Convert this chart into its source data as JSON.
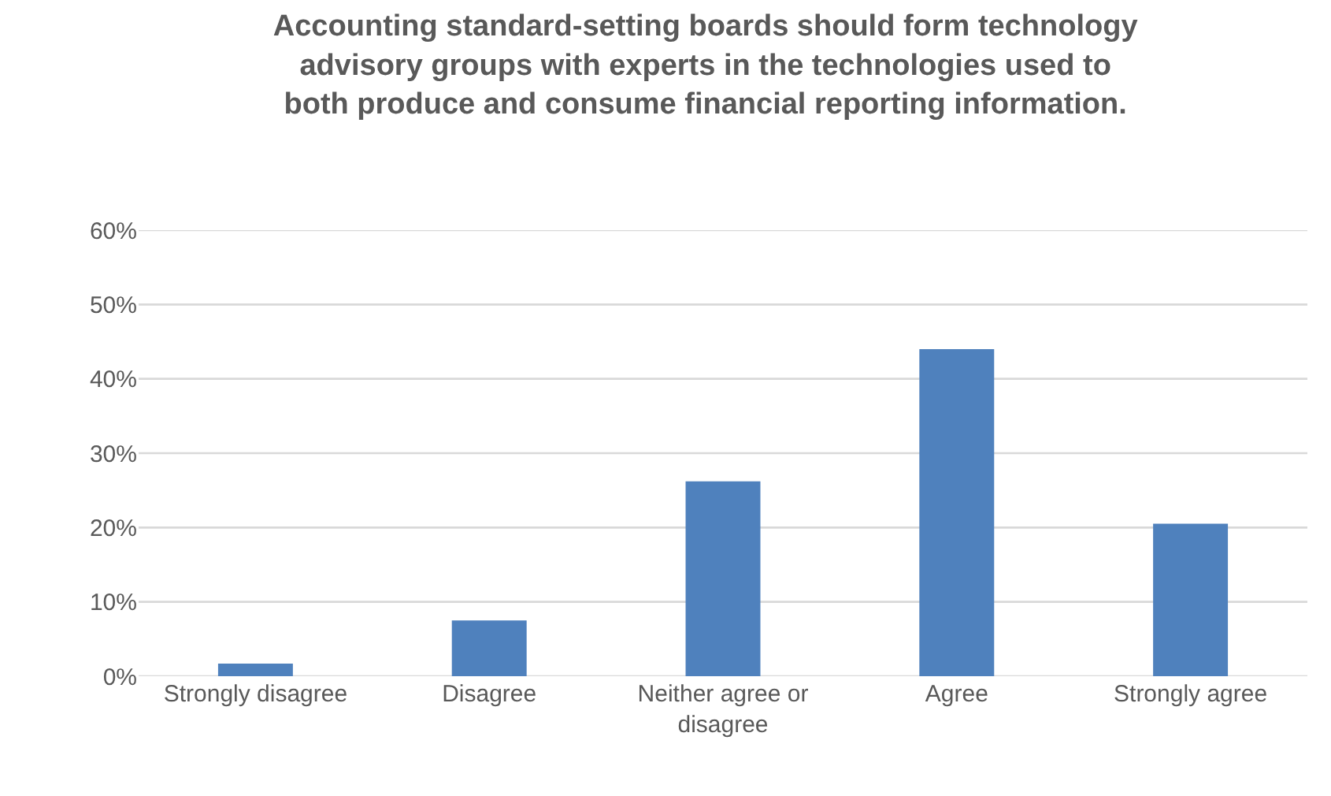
{
  "chart_data": {
    "type": "bar",
    "title": "Accounting standard-setting boards should form technology advisory groups with experts in the technologies used to both produce and consume financial reporting information.",
    "categories": [
      "Strongly disagree",
      "Disagree",
      "Neither agree or disagree",
      "Agree",
      "Strongly agree"
    ],
    "values": [
      1.7,
      7.5,
      26.2,
      44.0,
      20.5
    ],
    "color": "#4f81bd",
    "ylim": [
      0,
      60
    ],
    "yticks": [
      {
        "value": 0,
        "label": "0%"
      },
      {
        "value": 10,
        "label": "10%"
      },
      {
        "value": 20,
        "label": "20%"
      },
      {
        "value": 30,
        "label": "30%"
      },
      {
        "value": 40,
        "label": "40%"
      },
      {
        "value": 50,
        "label": "50%"
      },
      {
        "value": 60,
        "label": "60%"
      }
    ],
    "grid": "y"
  }
}
